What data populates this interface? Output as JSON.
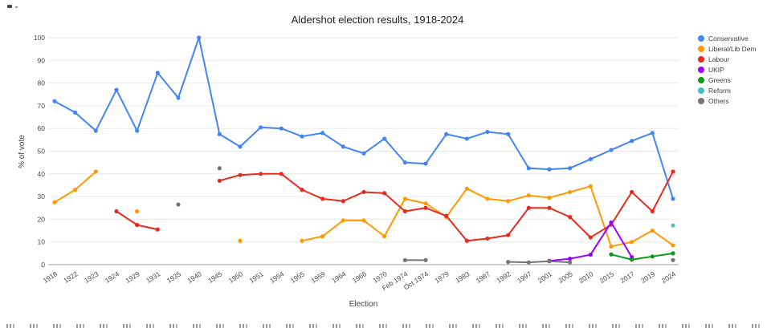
{
  "chart_data": {
    "type": "line",
    "title": "Aldershot election results, 1918-2024",
    "xlabel": "Election",
    "ylabel": "% of vote",
    "ylim": [
      0,
      100
    ],
    "yticks": [
      0,
      10,
      20,
      30,
      40,
      50,
      60,
      70,
      80,
      90,
      100
    ],
    "grid": true,
    "legend_position": "right",
    "categories": [
      "1918",
      "1922",
      "1923",
      "1924",
      "1929",
      "1931",
      "1935",
      "1940",
      "1945",
      "1950",
      "1951",
      "1954",
      "1955",
      "1959",
      "1964",
      "1966",
      "1970",
      "Feb 1974",
      "Oct 1974",
      "1979",
      "1983",
      "1987",
      "1992",
      "1997",
      "2001",
      "2005",
      "2010",
      "2015",
      "2017",
      "2019",
      "2024"
    ],
    "series": [
      {
        "name": "Conservative",
        "color": "#4285f4",
        "values": [
          72,
          67,
          59,
          77,
          59,
          84.5,
          73.5,
          100,
          57.5,
          52,
          60.5,
          60,
          56.5,
          58,
          52,
          49,
          55.5,
          45,
          44.5,
          57.5,
          55.5,
          58.5,
          57.5,
          42.5,
          42,
          42.5,
          46.5,
          50.5,
          54.5,
          58,
          29
        ]
      },
      {
        "name": "Liberal/Lib Dem",
        "color": "#ff9900",
        "values": [
          27.5,
          33,
          41,
          null,
          23.5,
          null,
          null,
          null,
          null,
          10.5,
          null,
          null,
          10.5,
          12.5,
          19.5,
          19.5,
          12.5,
          29,
          27,
          21,
          33.5,
          29,
          28,
          30.5,
          29.5,
          32,
          34.5,
          8,
          10,
          15,
          8.5
        ]
      },
      {
        "name": "Labour",
        "color": "#e8291c",
        "values": [
          null,
          null,
          null,
          23.5,
          17.5,
          15.5,
          null,
          null,
          37,
          39.5,
          40,
          40,
          33,
          29,
          28,
          32,
          31.5,
          23.5,
          25,
          21.5,
          10.5,
          11.5,
          13,
          25,
          25,
          21,
          12,
          17.6,
          32,
          23.5,
          41
        ]
      },
      {
        "name": "UKIP",
        "color": "#9900ff",
        "values": [
          null,
          null,
          null,
          null,
          null,
          null,
          null,
          null,
          null,
          null,
          null,
          null,
          null,
          null,
          null,
          null,
          null,
          null,
          null,
          null,
          null,
          null,
          null,
          null,
          1.7,
          2.6,
          4.4,
          18.6,
          3.3,
          null,
          null
        ]
      },
      {
        "name": "Greens",
        "color": "#109618",
        "values": [
          null,
          null,
          null,
          null,
          null,
          null,
          null,
          null,
          null,
          null,
          null,
          null,
          null,
          null,
          null,
          null,
          null,
          null,
          null,
          null,
          null,
          null,
          null,
          null,
          null,
          null,
          null,
          4.5,
          2.2,
          3.6,
          5
        ]
      },
      {
        "name": "Reform",
        "color": "#46bdc6",
        "values": [
          null,
          null,
          null,
          null,
          null,
          null,
          null,
          null,
          null,
          null,
          null,
          null,
          null,
          null,
          null,
          null,
          null,
          null,
          null,
          null,
          null,
          null,
          null,
          null,
          null,
          null,
          null,
          null,
          null,
          null,
          17.3
        ]
      },
      {
        "name": "Others",
        "color": "#757575",
        "values": [
          null,
          null,
          null,
          null,
          null,
          null,
          26.5,
          null,
          42.5,
          null,
          null,
          null,
          null,
          null,
          null,
          null,
          null,
          2,
          2,
          null,
          null,
          null,
          1.2,
          1,
          1.5,
          1,
          null,
          null,
          null,
          null,
          2
        ]
      }
    ]
  }
}
